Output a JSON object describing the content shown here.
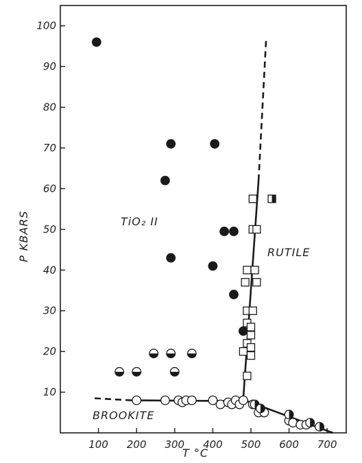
{
  "chart_data": {
    "type": "scatter",
    "title": "",
    "xlabel": "T °C",
    "ylabel": "P KBARS",
    "xlim": [
      0,
      750
    ],
    "ylim": [
      0,
      105
    ],
    "x_ticks": [
      100,
      200,
      300,
      400,
      500,
      600,
      700
    ],
    "y_ticks": [
      10,
      20,
      30,
      40,
      50,
      60,
      70,
      80,
      90,
      100
    ],
    "grid": false,
    "legend": "none",
    "region_labels": {
      "tio2": "TiO₂ II",
      "rutile": "RUTILE",
      "brookite": "BROOKITE"
    },
    "series": [
      {
        "marker": "filled-circle",
        "points": [
          [
            95,
            96
          ],
          [
            290,
            71
          ],
          [
            405,
            71
          ],
          [
            275,
            62
          ],
          [
            430,
            49.5
          ],
          [
            455,
            49.5
          ],
          [
            290,
            43
          ],
          [
            400,
            41
          ],
          [
            455,
            34
          ],
          [
            480,
            25
          ]
        ]
      },
      {
        "marker": "half-filled-circle",
        "points": [
          [
            155,
            15
          ],
          [
            200,
            15
          ],
          [
            245,
            19.5
          ],
          [
            290,
            19.5
          ],
          [
            345,
            19.5
          ],
          [
            300,
            15
          ]
        ]
      },
      {
        "marker": "open-circle",
        "points": [
          [
            200,
            8
          ],
          [
            275,
            8
          ],
          [
            310,
            8
          ],
          [
            320,
            7.5
          ],
          [
            330,
            8
          ],
          [
            345,
            8
          ],
          [
            400,
            8
          ],
          [
            420,
            7
          ],
          [
            440,
            7.5
          ],
          [
            450,
            7
          ],
          [
            460,
            8
          ],
          [
            470,
            7
          ],
          [
            480,
            8
          ],
          [
            505,
            7
          ],
          [
            520,
            5
          ],
          [
            535,
            5
          ],
          [
            600,
            3
          ],
          [
            610,
            2.5
          ],
          [
            630,
            2
          ],
          [
            645,
            2
          ]
        ]
      },
      {
        "marker": "half-filled-circle-vertical",
        "points": [
          [
            510,
            7
          ],
          [
            525,
            6
          ],
          [
            600,
            4.5
          ],
          [
            655,
            2.5
          ],
          [
            680,
            1.5
          ]
        ]
      },
      {
        "marker": "open-square",
        "points": [
          [
            505,
            57.5
          ],
          [
            505,
            50
          ],
          [
            515,
            50
          ],
          [
            490,
            40
          ],
          [
            510,
            40
          ],
          [
            485,
            37
          ],
          [
            515,
            37
          ],
          [
            490,
            30
          ],
          [
            505,
            30
          ],
          [
            490,
            27
          ],
          [
            500,
            26
          ],
          [
            500,
            24
          ],
          [
            490,
            22
          ],
          [
            500,
            21
          ],
          [
            480,
            20
          ],
          [
            500,
            19
          ],
          [
            490,
            14
          ]
        ]
      },
      {
        "marker": "half-filled-square",
        "points": [
          [
            555,
            57.5
          ]
        ]
      }
    ],
    "boundaries": [
      {
        "name": "rutile-boundary",
        "solid": [
          [
            480,
            8.5
          ],
          [
            520,
            62
          ]
        ],
        "dashed": [
          [
            520,
            62
          ],
          [
            540,
            97
          ]
        ]
      },
      {
        "name": "brookite-boundary",
        "dashed": [
          [
            90,
            8.5
          ],
          [
            185,
            8
          ]
        ],
        "solid": [
          [
            185,
            8
          ],
          [
            490,
            7.8
          ],
          [
            715,
            0
          ]
        ]
      }
    ]
  }
}
